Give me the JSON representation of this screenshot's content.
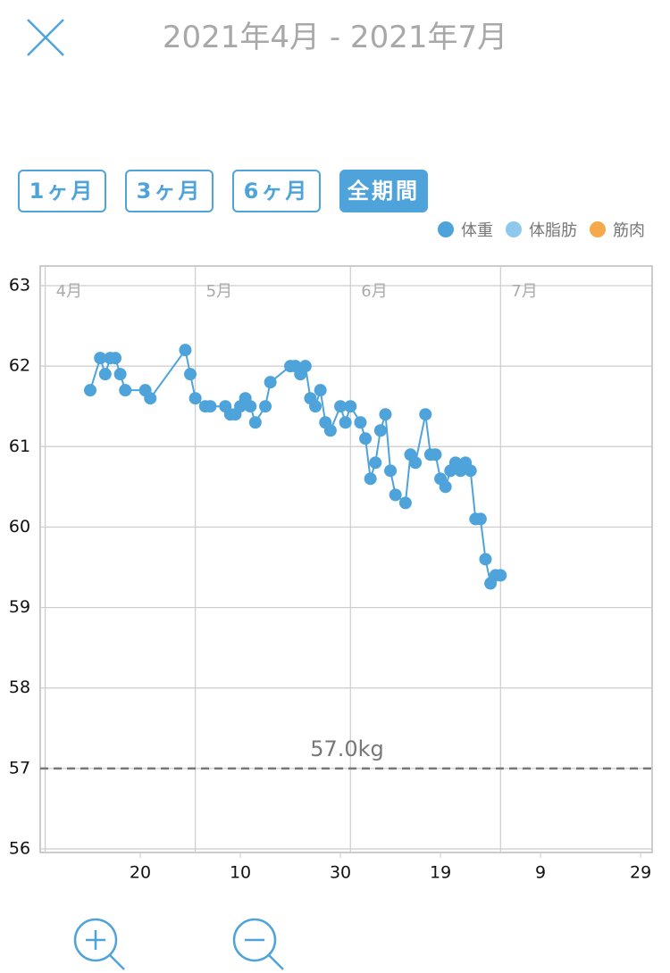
{
  "header": {
    "title": "2021年4月 - 2021年7月"
  },
  "period_buttons": [
    "1ヶ月",
    "3ヶ月",
    "6ヶ月",
    "全期間"
  ],
  "selected_period_index": 3,
  "chart_data": {
    "type": "line",
    "x": [
      10,
      12,
      13,
      14,
      15,
      16,
      17,
      21,
      22,
      29,
      30,
      31,
      33,
      34,
      37,
      38,
      39,
      40,
      41,
      42,
      43,
      45,
      46,
      50,
      51,
      52,
      53,
      54,
      55,
      56,
      57,
      58,
      60,
      61,
      62,
      64,
      65,
      66,
      67,
      68,
      69,
      70,
      71,
      73,
      74,
      75,
      77,
      78,
      79,
      80,
      81,
      82,
      83,
      84,
      85,
      86,
      87,
      88,
      89,
      90,
      91,
      92
    ],
    "series": [
      {
        "name": "体重",
        "color": "#4fa3db",
        "values": [
          61.7,
          62.1,
          61.9,
          62.1,
          62.1,
          61.9,
          61.7,
          61.7,
          61.6,
          62.2,
          61.9,
          61.6,
          61.5,
          61.5,
          61.5,
          61.4,
          61.4,
          61.5,
          61.6,
          61.5,
          61.3,
          61.5,
          61.8,
          62.0,
          62.0,
          61.9,
          62.0,
          61.6,
          61.5,
          61.7,
          61.3,
          61.2,
          61.5,
          61.3,
          61.5,
          61.3,
          61.1,
          60.6,
          60.8,
          61.2,
          61.4,
          60.7,
          60.4,
          60.3,
          60.9,
          60.8,
          61.4,
          60.9,
          60.9,
          60.6,
          60.5,
          60.7,
          60.8,
          60.7,
          60.8,
          60.7,
          60.1,
          60.1,
          59.6,
          59.3,
          59.4,
          59.4
        ]
      },
      {
        "name": "体脂肪",
        "color": "#8ec8ef",
        "values": [
          null,
          null,
          null,
          null,
          null,
          null,
          null,
          null,
          null,
          null,
          null,
          null,
          null,
          null,
          null,
          null,
          null,
          null,
          null,
          null,
          null,
          null,
          null,
          null,
          null,
          null,
          null,
          null,
          null,
          null,
          null,
          null,
          null,
          null,
          null,
          null,
          null,
          null,
          null,
          null,
          null,
          null,
          null,
          null,
          null,
          null,
          null,
          null,
          null,
          null,
          null,
          null,
          null,
          null,
          null,
          null,
          null,
          null,
          null,
          null,
          null,
          null
        ]
      },
      {
        "name": "筋肉",
        "color": "#f5a94a",
        "values": [
          null,
          null,
          null,
          null,
          null,
          null,
          null,
          null,
          null,
          null,
          null,
          null,
          null,
          null,
          null,
          null,
          null,
          null,
          null,
          null,
          null,
          null,
          null,
          null,
          null,
          null,
          null,
          null,
          null,
          null,
          null,
          null,
          null,
          null,
          null,
          null,
          null,
          null,
          null,
          null,
          null,
          null,
          null,
          null,
          null,
          null,
          null,
          null,
          null,
          null,
          null,
          null,
          null,
          null,
          null,
          null,
          null,
          null,
          null,
          null,
          null,
          null
        ]
      }
    ],
    "xlim": [
      0,
      122.3
    ],
    "xticks": [
      {
        "value": 20,
        "label": "20"
      },
      {
        "value": 40,
        "label": "10"
      },
      {
        "value": 60,
        "label": "30"
      },
      {
        "value": 80,
        "label": "19"
      },
      {
        "value": 100,
        "label": "9"
      },
      {
        "value": 120,
        "label": "29"
      }
    ],
    "month_markers": [
      {
        "value": 1,
        "label": "4月"
      },
      {
        "value": 31,
        "label": "5月"
      },
      {
        "value": 62,
        "label": "6月"
      },
      {
        "value": 92,
        "label": "7月"
      }
    ],
    "ylim": [
      56,
      63
    ],
    "yticks": [
      56,
      57,
      58,
      59,
      60,
      61,
      62,
      63
    ],
    "target_line": {
      "value": 57,
      "label": "57.0kg"
    },
    "grid": true,
    "legend": "top-right"
  }
}
